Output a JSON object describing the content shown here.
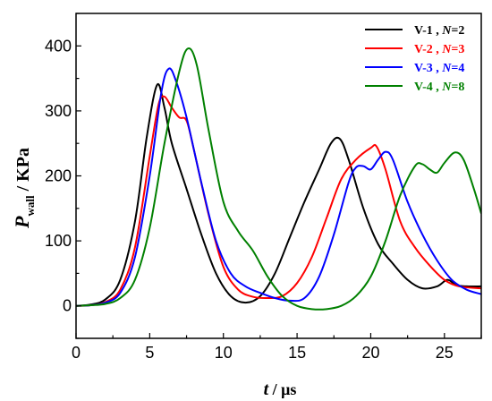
{
  "chart_data": {
    "type": "line",
    "xlim": [
      0,
      27.5
    ],
    "ylim": [
      -50,
      450
    ],
    "x_ticks": [
      0,
      5,
      10,
      15,
      20,
      25
    ],
    "y_ticks": [
      0,
      100,
      200,
      300,
      400
    ],
    "x_tick_labels": [
      "0",
      "5",
      "10",
      "15",
      "20",
      "25"
    ],
    "y_tick_labels": [
      "0",
      "100",
      "200",
      "300",
      "400"
    ],
    "xlabel": {
      "symbol": "t",
      "unit": " / μs"
    },
    "ylabel": {
      "symbol": "P",
      "subscript": "wall",
      "unit": " / KPa"
    },
    "legend_position": "top-right",
    "grid": false,
    "series": [
      {
        "name": "V-1 , N=2",
        "legend": {
          "prefix": "V-1 , ",
          "var": "N",
          "suffix": "=2"
        },
        "color": "#000000",
        "points": [
          [
            0,
            0
          ],
          [
            1,
            2
          ],
          [
            2,
            10
          ],
          [
            3,
            40
          ],
          [
            4,
            130
          ],
          [
            4.8,
            260
          ],
          [
            5.5,
            340
          ],
          [
            6,
            305
          ],
          [
            6.5,
            250
          ],
          [
            7.5,
            180
          ],
          [
            8.5,
            110
          ],
          [
            9.5,
            50
          ],
          [
            10.5,
            15
          ],
          [
            11.5,
            5
          ],
          [
            12.5,
            15
          ],
          [
            13.5,
            50
          ],
          [
            14.5,
            105
          ],
          [
            15.5,
            160
          ],
          [
            16.5,
            210
          ],
          [
            17.3,
            250
          ],
          [
            17.9,
            257
          ],
          [
            18.5,
            225
          ],
          [
            19.5,
            150
          ],
          [
            20.5,
            95
          ],
          [
            21.5,
            65
          ],
          [
            22.5,
            40
          ],
          [
            23.5,
            27
          ],
          [
            24.5,
            30
          ],
          [
            25.2,
            40
          ],
          [
            25.8,
            32
          ],
          [
            26.5,
            30
          ],
          [
            27.5,
            30
          ]
        ]
      },
      {
        "name": "V-2 , N=3",
        "legend": {
          "prefix": "V-2 , ",
          "var": "N",
          "suffix": "=3"
        },
        "color": "#ff0000",
        "points": [
          [
            0,
            0
          ],
          [
            1,
            1
          ],
          [
            2,
            6
          ],
          [
            3,
            25
          ],
          [
            4,
            90
          ],
          [
            5,
            230
          ],
          [
            5.6,
            310
          ],
          [
            6,
            322
          ],
          [
            6.5,
            305
          ],
          [
            7,
            290
          ],
          [
            7.5,
            285
          ],
          [
            8,
            240
          ],
          [
            9,
            140
          ],
          [
            10,
            60
          ],
          [
            11,
            25
          ],
          [
            12,
            14
          ],
          [
            13,
            12
          ],
          [
            14,
            15
          ],
          [
            15,
            35
          ],
          [
            16,
            75
          ],
          [
            17,
            135
          ],
          [
            18,
            195
          ],
          [
            19,
            225
          ],
          [
            20,
            243
          ],
          [
            20.4,
            245
          ],
          [
            21,
            210
          ],
          [
            22,
            130
          ],
          [
            23,
            90
          ],
          [
            24,
            62
          ],
          [
            25,
            40
          ],
          [
            26,
            30
          ],
          [
            27.5,
            27
          ]
        ]
      },
      {
        "name": "V-3 , N=4",
        "legend": {
          "prefix": "V-3 , ",
          "var": "N",
          "suffix": "=4"
        },
        "color": "#0000ff",
        "points": [
          [
            0,
            0
          ],
          [
            1,
            1
          ],
          [
            2,
            5
          ],
          [
            3,
            20
          ],
          [
            4,
            75
          ],
          [
            5,
            200
          ],
          [
            5.8,
            330
          ],
          [
            6.3,
            365
          ],
          [
            6.8,
            345
          ],
          [
            7.5,
            290
          ],
          [
            8.5,
            190
          ],
          [
            9.5,
            100
          ],
          [
            10.5,
            50
          ],
          [
            11.5,
            30
          ],
          [
            12.5,
            20
          ],
          [
            13.5,
            12
          ],
          [
            14.5,
            8
          ],
          [
            15.5,
            12
          ],
          [
            16.5,
            45
          ],
          [
            17.5,
            110
          ],
          [
            18.5,
            190
          ],
          [
            19,
            213
          ],
          [
            19.5,
            215
          ],
          [
            20,
            210
          ],
          [
            20.5,
            225
          ],
          [
            21,
            237
          ],
          [
            21.5,
            225
          ],
          [
            22.5,
            160
          ],
          [
            23.5,
            110
          ],
          [
            24.5,
            70
          ],
          [
            25.5,
            40
          ],
          [
            26.5,
            25
          ],
          [
            27.5,
            18
          ]
        ]
      },
      {
        "name": "V-4 , N=8",
        "legend": {
          "prefix": "V-4 , ",
          "var": "N",
          "suffix": "=8"
        },
        "color": "#008000",
        "points": [
          [
            0,
            0
          ],
          [
            1,
            1
          ],
          [
            2,
            3
          ],
          [
            3,
            12
          ],
          [
            4,
            40
          ],
          [
            5,
            120
          ],
          [
            6,
            250
          ],
          [
            7,
            360
          ],
          [
            7.6,
            396
          ],
          [
            8.2,
            370
          ],
          [
            9,
            270
          ],
          [
            10,
            160
          ],
          [
            11,
            115
          ],
          [
            12,
            85
          ],
          [
            13,
            45
          ],
          [
            14,
            15
          ],
          [
            15,
            0
          ],
          [
            16,
            -5
          ],
          [
            17,
            -5
          ],
          [
            18,
            0
          ],
          [
            19,
            15
          ],
          [
            20,
            45
          ],
          [
            21,
            100
          ],
          [
            22,
            170
          ],
          [
            23,
            215
          ],
          [
            23.5,
            218
          ],
          [
            24,
            210
          ],
          [
            24.5,
            205
          ],
          [
            25,
            220
          ],
          [
            25.7,
            236
          ],
          [
            26.3,
            225
          ],
          [
            27,
            180
          ],
          [
            27.5,
            142
          ]
        ]
      }
    ]
  }
}
